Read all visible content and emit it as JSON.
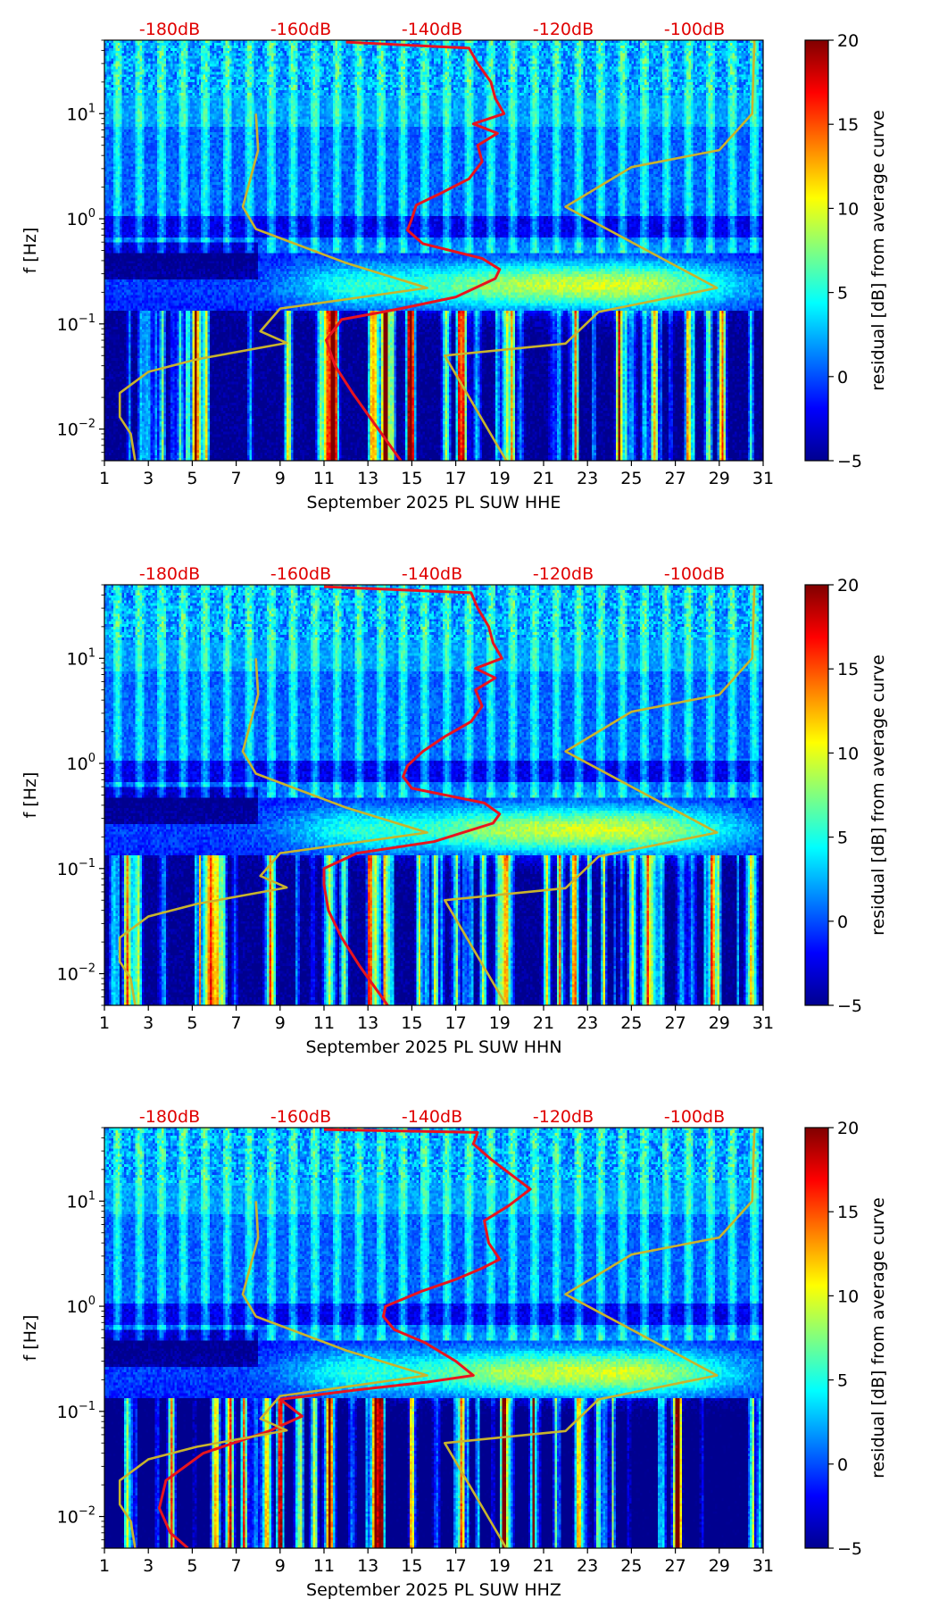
{
  "colormap": {
    "stops": [
      "#00008f",
      "#0000ff",
      "#0080ff",
      "#00ffff",
      "#80ff80",
      "#ffff00",
      "#ff8000",
      "#ff0000",
      "#800000"
    ],
    "range": [
      -5,
      20
    ]
  },
  "chart_data": [
    {
      "type": "heatmap",
      "title": "September 2025 PL SUW  HHE",
      "xlabel": "September 2025 PL SUW  HHE",
      "ylabel": "f [Hz]",
      "xlim": [
        1,
        31
      ],
      "xticks": [
        "1",
        "3",
        "5",
        "7",
        "9",
        "11",
        "13",
        "15",
        "17",
        "19",
        "21",
        "23",
        "25",
        "27",
        "29",
        "31"
      ],
      "ylim": [
        0.005,
        50
      ],
      "yticks": [
        {
          "value": 0.01,
          "base": "10",
          "exp": "−2"
        },
        {
          "value": 0.1,
          "base": "10",
          "exp": "−1"
        },
        {
          "value": 1,
          "base": "10",
          "exp": "0"
        },
        {
          "value": 10,
          "base": "10",
          "exp": "1"
        }
      ],
      "top_axis_labels": [
        "-180dB",
        "-160dB",
        "-140dB",
        "-120dB",
        "-100dB"
      ],
      "colorbar": {
        "label": "residual [dB] from average curve",
        "ticks": [
          "20",
          "15",
          "10",
          "5",
          "0",
          "−5"
        ],
        "range": [
          -5,
          20
        ]
      },
      "series": [
        {
          "name": "red-psd-curve",
          "color": "#e8141e",
          "points": [
            [
              14.5,
              0.005
            ],
            [
              14.0,
              0.007
            ],
            [
              13.2,
              0.012
            ],
            [
              12.3,
              0.022
            ],
            [
              11.5,
              0.04
            ],
            [
              11.1,
              0.07
            ],
            [
              11.8,
              0.11
            ],
            [
              14.5,
              0.14
            ],
            [
              17.0,
              0.18
            ],
            [
              18.8,
              0.27
            ],
            [
              19.0,
              0.33
            ],
            [
              18.2,
              0.42
            ],
            [
              15.5,
              0.58
            ],
            [
              14.8,
              0.78
            ],
            [
              15.0,
              1.0
            ],
            [
              15.2,
              1.35
            ],
            [
              16.2,
              1.7
            ],
            [
              17.6,
              2.4
            ],
            [
              18.2,
              3.5
            ],
            [
              18.0,
              5.0
            ],
            [
              18.9,
              6.5
            ],
            [
              17.8,
              8.0
            ],
            [
              19.2,
              10
            ],
            [
              18.8,
              14
            ],
            [
              18.6,
              20
            ],
            [
              18.0,
              30
            ],
            [
              17.6,
              42
            ],
            [
              12.0,
              48
            ]
          ]
        },
        {
          "name": "yellow-curve-low",
          "color": "#c9b42c",
          "points": [
            [
              2.4,
              0.005
            ],
            [
              2.2,
              0.009
            ],
            [
              1.7,
              0.013
            ],
            [
              1.7,
              0.022
            ],
            [
              3.0,
              0.035
            ],
            [
              5.2,
              0.046
            ],
            [
              9.3,
              0.066
            ],
            [
              8.1,
              0.085
            ],
            [
              9.0,
              0.14
            ],
            [
              15.7,
              0.22
            ],
            [
              12.0,
              0.38
            ],
            [
              7.9,
              0.8
            ],
            [
              7.3,
              1.3
            ],
            [
              8.0,
              4.5
            ],
            [
              7.9,
              10
            ]
          ]
        },
        {
          "name": "yellow-curve-high",
          "color": "#c9b42c",
          "points": [
            [
              19.3,
              0.005
            ],
            [
              16.5,
              0.05
            ],
            [
              22.0,
              0.065
            ],
            [
              23.5,
              0.13
            ],
            [
              28.9,
              0.22
            ],
            [
              22.0,
              1.3
            ],
            [
              25.0,
              3.1
            ],
            [
              29.0,
              4.5
            ],
            [
              30.5,
              10
            ],
            [
              30.6,
              50
            ]
          ]
        }
      ]
    },
    {
      "type": "heatmap",
      "title": "September 2025 PL SUW  HHN",
      "xlabel": "September 2025 PL SUW  HHN",
      "ylabel": "f [Hz]",
      "xlim": [
        1,
        31
      ],
      "xticks": [
        "1",
        "3",
        "5",
        "7",
        "9",
        "11",
        "13",
        "15",
        "17",
        "19",
        "21",
        "23",
        "25",
        "27",
        "29",
        "31"
      ],
      "ylim": [
        0.005,
        50
      ],
      "yticks": [
        {
          "value": 0.01,
          "base": "10",
          "exp": "−2"
        },
        {
          "value": 0.1,
          "base": "10",
          "exp": "−1"
        },
        {
          "value": 1,
          "base": "10",
          "exp": "0"
        },
        {
          "value": 10,
          "base": "10",
          "exp": "1"
        }
      ],
      "top_axis_labels": [
        "-180dB",
        "-160dB",
        "-140dB",
        "-120dB",
        "-100dB"
      ],
      "colorbar": {
        "label": "residual [dB] from average curve",
        "ticks": [
          "20",
          "15",
          "10",
          "5",
          "0",
          "−5"
        ],
        "range": [
          -5,
          20
        ]
      },
      "series": [
        {
          "name": "red-psd-curve",
          "color": "#e8141e",
          "points": [
            [
              13.9,
              0.005
            ],
            [
              13.4,
              0.007
            ],
            [
              12.6,
              0.012
            ],
            [
              11.8,
              0.022
            ],
            [
              11.2,
              0.04
            ],
            [
              11.0,
              0.07
            ],
            [
              11.0,
              0.1
            ],
            [
              12.5,
              0.14
            ],
            [
              16.0,
              0.18
            ],
            [
              18.7,
              0.27
            ],
            [
              19.0,
              0.33
            ],
            [
              18.3,
              0.42
            ],
            [
              15.0,
              0.58
            ],
            [
              14.6,
              0.75
            ],
            [
              14.8,
              0.95
            ],
            [
              15.5,
              1.3
            ],
            [
              16.5,
              1.8
            ],
            [
              17.7,
              2.5
            ],
            [
              18.2,
              3.5
            ],
            [
              17.9,
              5.0
            ],
            [
              18.8,
              6.5
            ],
            [
              17.9,
              8.0
            ],
            [
              19.1,
              10
            ],
            [
              18.7,
              14
            ],
            [
              18.5,
              20
            ],
            [
              18.0,
              30
            ],
            [
              17.7,
              42
            ],
            [
              11.0,
              48
            ]
          ]
        },
        {
          "name": "yellow-curve-low",
          "color": "#c9b42c",
          "points": [
            [
              2.4,
              0.005
            ],
            [
              2.2,
              0.009
            ],
            [
              1.7,
              0.013
            ],
            [
              1.7,
              0.022
            ],
            [
              3.0,
              0.035
            ],
            [
              5.2,
              0.046
            ],
            [
              9.3,
              0.066
            ],
            [
              8.1,
              0.085
            ],
            [
              9.0,
              0.14
            ],
            [
              15.7,
              0.22
            ],
            [
              12.0,
              0.38
            ],
            [
              7.9,
              0.8
            ],
            [
              7.3,
              1.3
            ],
            [
              8.0,
              4.5
            ],
            [
              7.9,
              10
            ]
          ]
        },
        {
          "name": "yellow-curve-high",
          "color": "#c9b42c",
          "points": [
            [
              19.3,
              0.005
            ],
            [
              16.5,
              0.05
            ],
            [
              22.0,
              0.065
            ],
            [
              23.5,
              0.13
            ],
            [
              28.9,
              0.22
            ],
            [
              22.0,
              1.3
            ],
            [
              25.0,
              3.1
            ],
            [
              29.0,
              4.5
            ],
            [
              30.5,
              10
            ],
            [
              30.6,
              50
            ]
          ]
        }
      ]
    },
    {
      "type": "heatmap",
      "title": "September 2025 PL SUW  HHZ",
      "xlabel": "September 2025 PL SUW  HHZ",
      "ylabel": "f [Hz]",
      "xlim": [
        1,
        31
      ],
      "xticks": [
        "1",
        "3",
        "5",
        "7",
        "9",
        "11",
        "13",
        "15",
        "17",
        "19",
        "21",
        "23",
        "25",
        "27",
        "29",
        "31"
      ],
      "ylim": [
        0.005,
        50
      ],
      "yticks": [
        {
          "value": 0.01,
          "base": "10",
          "exp": "−2"
        },
        {
          "value": 0.1,
          "base": "10",
          "exp": "−1"
        },
        {
          "value": 1,
          "base": "10",
          "exp": "0"
        },
        {
          "value": 10,
          "base": "10",
          "exp": "1"
        }
      ],
      "top_axis_labels": [
        "-180dB",
        "-160dB",
        "-140dB",
        "-120dB",
        "-100dB"
      ],
      "colorbar": {
        "label": "residual [dB] from average curve",
        "ticks": [
          "20",
          "15",
          "10",
          "5",
          "0",
          "−5"
        ],
        "range": [
          -5,
          20
        ]
      },
      "series": [
        {
          "name": "red-psd-curve",
          "color": "#e8141e",
          "points": [
            [
              4.8,
              0.005
            ],
            [
              4.0,
              0.007
            ],
            [
              3.5,
              0.012
            ],
            [
              3.8,
              0.022
            ],
            [
              5.5,
              0.04
            ],
            [
              8.5,
              0.065
            ],
            [
              10.0,
              0.09
            ],
            [
              9.0,
              0.13
            ],
            [
              12.5,
              0.16
            ],
            [
              15.7,
              0.19
            ],
            [
              17.8,
              0.22
            ],
            [
              17.0,
              0.3
            ],
            [
              15.6,
              0.45
            ],
            [
              14.2,
              0.6
            ],
            [
              13.7,
              0.8
            ],
            [
              13.8,
              1.0
            ],
            [
              15.5,
              1.4
            ],
            [
              17.0,
              1.8
            ],
            [
              18.2,
              2.3
            ],
            [
              19.0,
              2.8
            ],
            [
              18.5,
              4.0
            ],
            [
              18.3,
              6.5
            ],
            [
              19.4,
              9.0
            ],
            [
              20.4,
              13
            ],
            [
              19.5,
              18
            ],
            [
              18.6,
              25
            ],
            [
              17.8,
              35
            ],
            [
              18.0,
              45
            ],
            [
              11.0,
              48
            ]
          ]
        },
        {
          "name": "yellow-curve-low",
          "color": "#c9b42c",
          "points": [
            [
              2.4,
              0.005
            ],
            [
              2.2,
              0.009
            ],
            [
              1.7,
              0.013
            ],
            [
              1.7,
              0.022
            ],
            [
              3.0,
              0.035
            ],
            [
              5.2,
              0.046
            ],
            [
              9.3,
              0.066
            ],
            [
              8.1,
              0.085
            ],
            [
              9.0,
              0.14
            ],
            [
              15.7,
              0.22
            ],
            [
              12.0,
              0.38
            ],
            [
              7.9,
              0.8
            ],
            [
              7.3,
              1.3
            ],
            [
              8.0,
              4.5
            ],
            [
              7.9,
              10
            ]
          ]
        },
        {
          "name": "yellow-curve-high",
          "color": "#c9b42c",
          "points": [
            [
              19.3,
              0.005
            ],
            [
              16.5,
              0.05
            ],
            [
              22.0,
              0.065
            ],
            [
              23.5,
              0.13
            ],
            [
              28.9,
              0.22
            ],
            [
              22.0,
              1.3
            ],
            [
              25.0,
              3.1
            ],
            [
              29.0,
              4.5
            ],
            [
              30.5,
              10
            ],
            [
              30.6,
              50
            ]
          ]
        }
      ]
    }
  ]
}
